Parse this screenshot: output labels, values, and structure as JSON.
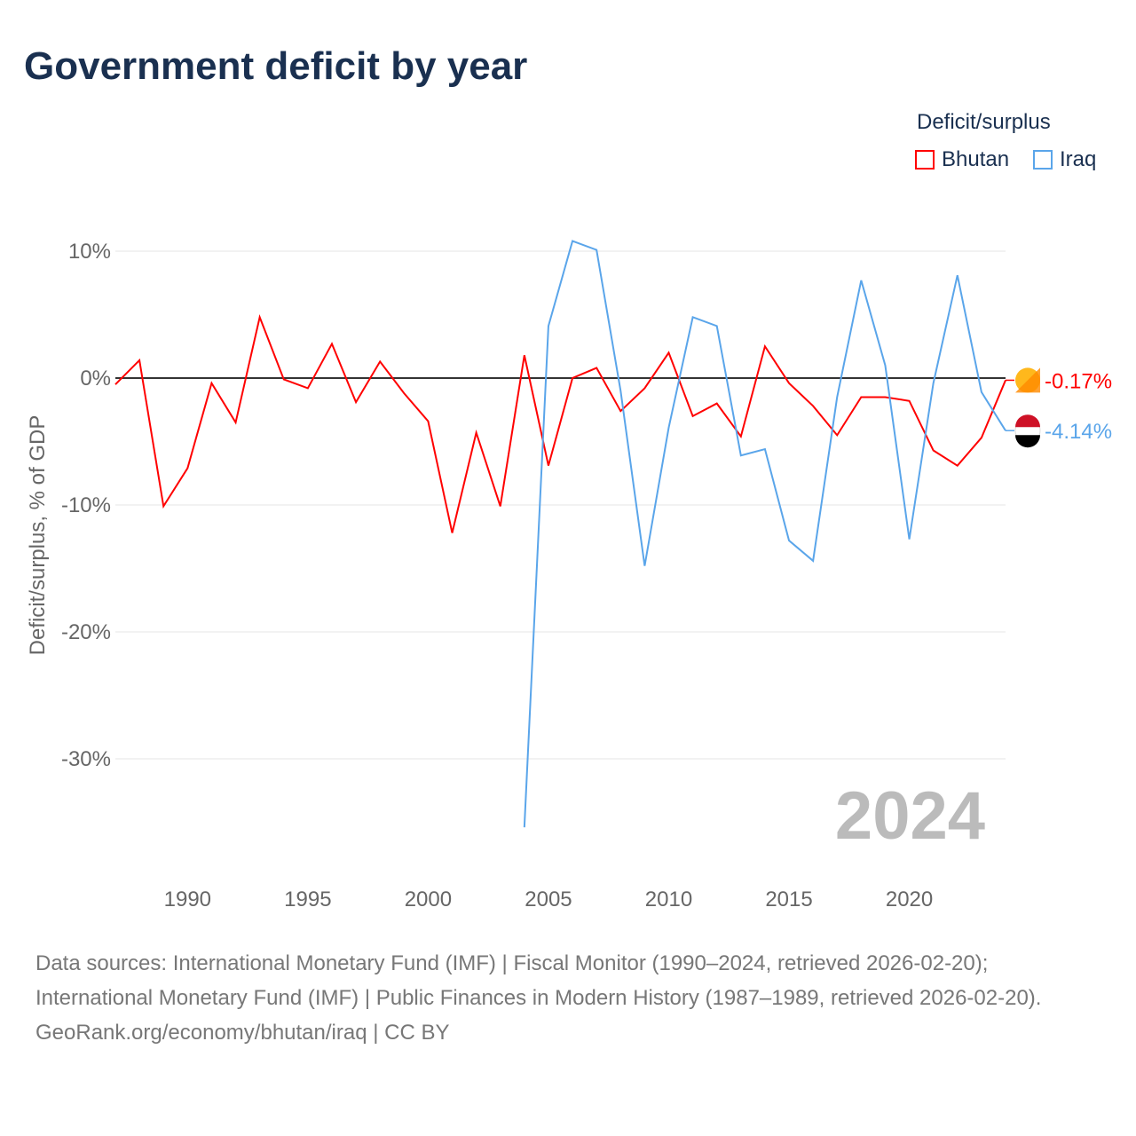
{
  "title": "Government deficit by year",
  "legend": {
    "title": "Deficit/surplus",
    "items": [
      {
        "name": "Bhutan",
        "color": "#ff0000"
      },
      {
        "name": "Iraq",
        "color": "#5aa5ea"
      }
    ]
  },
  "year_watermark": "2024",
  "source_lines": [
    "Data sources: International Monetary Fund (IMF) | Fiscal Monitor (1990–2024, retrieved 2026-02-20); International Monetary Fund (IMF) | Public Finances in Modern History (1987–1989, retrieved 2026-02-20).",
    "GeoRank.org/economy/bhutan/iraq | CC BY"
  ],
  "chart_data": {
    "type": "line",
    "title": "Government deficit by year",
    "xlabel": "",
    "ylabel": "Deficit/surplus, % of GDP",
    "xlim": [
      1987,
      2024
    ],
    "ylim": [
      -37,
      12
    ],
    "x_ticks": [
      1990,
      1995,
      2000,
      2005,
      2010,
      2015,
      2020
    ],
    "x_tick_labels": [
      "1990",
      "1995",
      "2000",
      "2005",
      "2010",
      "2015",
      "2020"
    ],
    "y_ticks": [
      10,
      0,
      -10,
      -20,
      -30
    ],
    "y_tick_labels": [
      "10%",
      "0%",
      "-10%",
      "-20%",
      "-30%"
    ],
    "legend_placement": "top-right",
    "series": [
      {
        "name": "Bhutan",
        "color": "#ff0000",
        "end_label": "-0.17%",
        "x": [
          1987,
          1988,
          1989,
          1990,
          1991,
          1992,
          1993,
          1994,
          1995,
          1996,
          1997,
          1998,
          1999,
          2000,
          2001,
          2002,
          2003,
          2004,
          2005,
          2006,
          2007,
          2008,
          2009,
          2010,
          2011,
          2012,
          2013,
          2014,
          2015,
          2016,
          2017,
          2018,
          2019,
          2020,
          2021,
          2022,
          2023,
          2024
        ],
        "values": [
          -0.5,
          1.4,
          -10.1,
          -7.1,
          -0.4,
          -3.5,
          4.8,
          -0.1,
          -0.8,
          2.7,
          -1.9,
          1.3,
          -1.2,
          -3.4,
          -12.2,
          -4.3,
          -10.1,
          1.8,
          -6.9,
          0.0,
          0.8,
          -2.6,
          -0.8,
          2.0,
          -3.0,
          -2.0,
          -4.6,
          2.5,
          -0.4,
          -2.2,
          -4.5,
          -1.5,
          -1.5,
          -1.8,
          -5.7,
          -6.9,
          -4.7,
          -0.17
        ]
      },
      {
        "name": "Iraq",
        "color": "#5aa5ea",
        "end_label": "-4.14%",
        "x": [
          2004,
          2005,
          2006,
          2007,
          2008,
          2009,
          2010,
          2011,
          2012,
          2013,
          2014,
          2015,
          2016,
          2017,
          2018,
          2019,
          2020,
          2021,
          2022,
          2023,
          2024
        ],
        "values": [
          -35.4,
          4.1,
          10.8,
          10.1,
          -1.0,
          -14.8,
          -3.9,
          4.8,
          4.1,
          -6.1,
          -5.6,
          -12.8,
          -14.4,
          -1.5,
          7.7,
          1.0,
          -12.7,
          -0.4,
          8.1,
          -1.1,
          -4.14
        ]
      }
    ]
  }
}
